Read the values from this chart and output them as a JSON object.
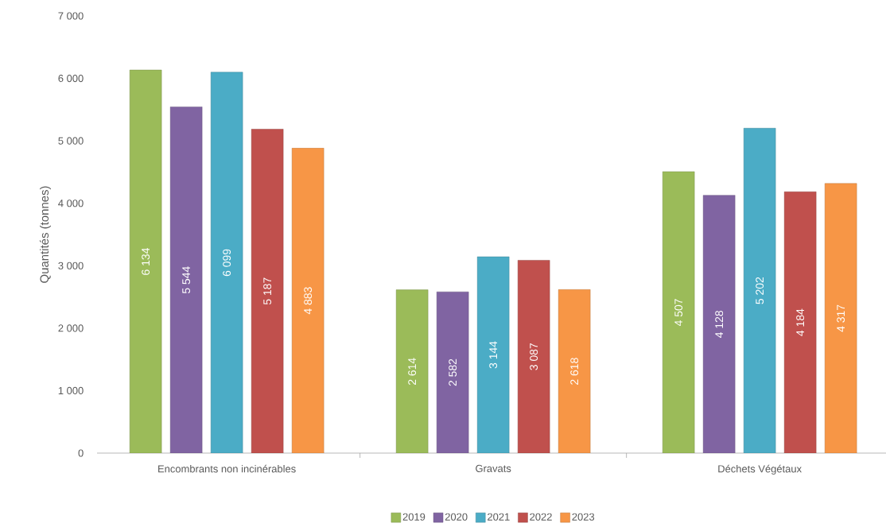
{
  "chart_data": {
    "type": "bar",
    "ylabel": "Quantités (tonnes)",
    "categories": [
      "Encombrants non incinérables",
      "Gravats",
      "Déchets Végétaux"
    ],
    "series": [
      {
        "name": "2019",
        "color": "#9bbb59",
        "values": [
          6134,
          2614,
          4507
        ],
        "value_labels": [
          "6 134",
          "2 614",
          "4 507"
        ]
      },
      {
        "name": "2020",
        "color": "#8064a2",
        "values": [
          5544,
          2582,
          4128
        ],
        "value_labels": [
          "5 544",
          "2 582",
          "4 128"
        ]
      },
      {
        "name": "2021",
        "color": "#4bacc6",
        "values": [
          6099,
          3144,
          5202
        ],
        "value_labels": [
          "6 099",
          "3 144",
          "5 202"
        ]
      },
      {
        "name": "2022",
        "color": "#c0504d",
        "values": [
          5187,
          3087,
          4184
        ],
        "value_labels": [
          "5 187",
          "3 087",
          "4 184"
        ]
      },
      {
        "name": "2023",
        "color": "#f79646",
        "values": [
          4883,
          2618,
          4317
        ],
        "value_labels": [
          "4 883",
          "2 618",
          "4 317"
        ]
      }
    ],
    "ylim": [
      0,
      7000
    ],
    "yticks": [
      0,
      {
        "value": 1000,
        "label": "1 000"
      },
      {
        "value": 2000,
        "label": "2 000"
      },
      {
        "value": 3000,
        "label": "3 000"
      },
      {
        "value": 4000,
        "label": "4 000"
      },
      {
        "value": 5000,
        "label": "5 000"
      },
      {
        "value": 6000,
        "label": "6 000"
      },
      {
        "value": 7000,
        "label": "7 000"
      }
    ],
    "legend": "bottom"
  }
}
